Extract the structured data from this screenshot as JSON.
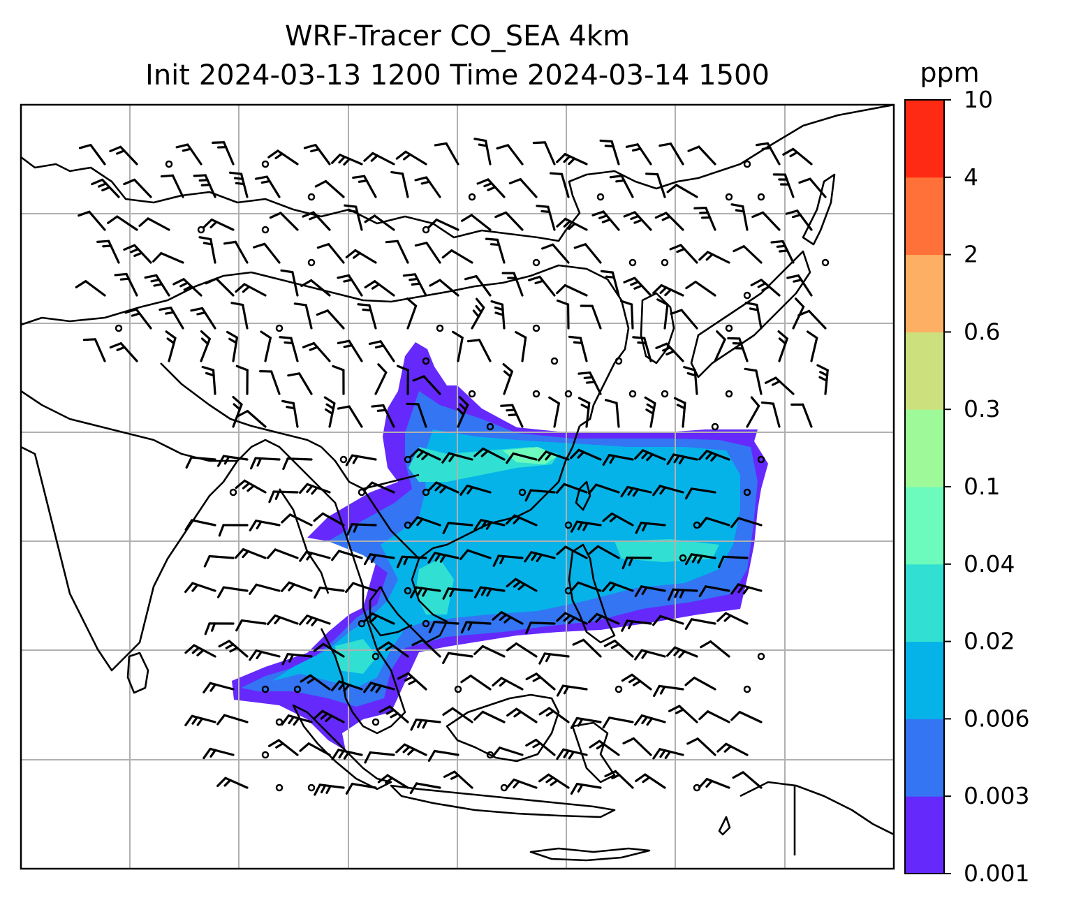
{
  "title_line1": "WRF-Tracer CO_SEA 4km",
  "title_line2": "Init 2024-03-13 1200 Time 2024-03-14 1500",
  "colorbar": {
    "unit": "ppm",
    "levels": [
      "0.001",
      "0.003",
      "0.006",
      "0.02",
      "0.04",
      "0.1",
      "0.3",
      "0.6",
      "2",
      "4",
      "10"
    ],
    "colors": [
      "#6529fb",
      "#3375f3",
      "#05b3e9",
      "#31dfd3",
      "#6cfbbc",
      "#9efa99",
      "#cde07e",
      "#fdb063",
      "#ff7139",
      "#ff2a13"
    ]
  },
  "map": {
    "gridlines": true,
    "coastlines": true,
    "wind_barbs": true
  }
}
